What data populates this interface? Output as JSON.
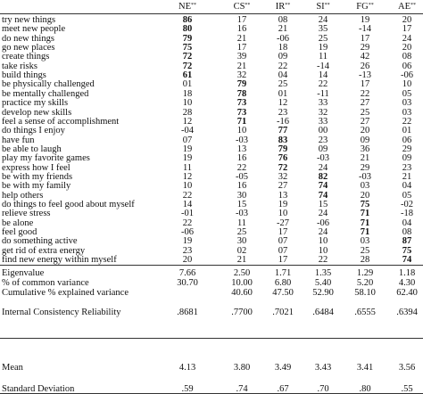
{
  "table": {
    "columns": [
      {
        "name": "NE",
        "mark": "**"
      },
      {
        "name": "CS",
        "mark": "**"
      },
      {
        "name": "IR",
        "mark": "**"
      },
      {
        "name": "SI",
        "mark": "**"
      },
      {
        "name": "FG",
        "mark": "**"
      },
      {
        "name": "AE",
        "mark": "**"
      }
    ],
    "rows": [
      {
        "label": "try new things",
        "cells": [
          "86",
          "17",
          "08",
          "24",
          "19",
          "20"
        ],
        "bold": 0
      },
      {
        "label": "meet new people",
        "cells": [
          "80",
          "16",
          "21",
          "35",
          "-14",
          "17"
        ],
        "bold": 0
      },
      {
        "label": "do new things",
        "cells": [
          "79",
          "21",
          "-06",
          "25",
          "17",
          "24"
        ],
        "bold": 0
      },
      {
        "label": "go new places",
        "cells": [
          "75",
          "17",
          "18",
          "19",
          "29",
          "20"
        ],
        "bold": 0
      },
      {
        "label": "create things",
        "cells": [
          "72",
          "39",
          "09",
          "11",
          "42",
          "08"
        ],
        "bold": 0
      },
      {
        "label": "take risks",
        "cells": [
          "72",
          "21",
          "22",
          "-14",
          "26",
          "06"
        ],
        "bold": 0
      },
      {
        "label": "build things",
        "cells": [
          "61",
          "32",
          "04",
          "14",
          "-13",
          "-06"
        ],
        "bold": 0
      },
      {
        "label": "be physically challenged",
        "cells": [
          "01",
          "79",
          "25",
          "22",
          "17",
          "10"
        ],
        "bold": 1
      },
      {
        "label": "be mentally challenged",
        "cells": [
          "18",
          "78",
          "01",
          "-11",
          "22",
          "05"
        ],
        "bold": 1
      },
      {
        "label": "practice my skills",
        "cells": [
          "10",
          "73",
          "12",
          "33",
          "27",
          "03"
        ],
        "bold": 1
      },
      {
        "label": "develop new skills",
        "cells": [
          "28",
          "73",
          "23",
          "32",
          "25",
          "03"
        ],
        "bold": 1
      },
      {
        "label": "feel a sense of accomplishment",
        "cells": [
          "12",
          "71",
          "-16",
          "33",
          "27",
          "22"
        ],
        "bold": 1
      },
      {
        "label": "do things I enjoy",
        "cells": [
          "-04",
          "10",
          "77",
          "00",
          "20",
          "01"
        ],
        "bold": 2
      },
      {
        "label": "have fun",
        "cells": [
          "07",
          "-03",
          "83",
          "23",
          "09",
          "06"
        ],
        "bold": 2
      },
      {
        "label": "be able to laugh",
        "cells": [
          "19",
          "13",
          "79",
          "09",
          "36",
          "29"
        ],
        "bold": 2
      },
      {
        "label": "play my favorite games",
        "cells": [
          "19",
          "16",
          "76",
          "-03",
          "21",
          "09"
        ],
        "bold": 2
      },
      {
        "label": "express how I feel",
        "cells": [
          "11",
          "22",
          "72",
          "24",
          "29",
          "23"
        ],
        "bold": 2
      },
      {
        "label": "be with my friends",
        "cells": [
          "12",
          "-05",
          "32",
          "82",
          "-03",
          "21"
        ],
        "bold": 3
      },
      {
        "label": "be with my family",
        "cells": [
          "10",
          "16",
          "27",
          "74",
          "03",
          "04"
        ],
        "bold": 3
      },
      {
        "label": "help others",
        "cells": [
          "22",
          "30",
          "13",
          "74",
          "20",
          "05"
        ],
        "bold": 3
      },
      {
        "label": "do things to feel good about myself",
        "cells": [
          "14",
          "15",
          "19",
          "15",
          "75",
          "-02"
        ],
        "bold": 4
      },
      {
        "label": "relieve stress",
        "cells": [
          "-01",
          "-03",
          "10",
          "24",
          "71",
          "-18"
        ],
        "bold": 4
      },
      {
        "label": "be alone",
        "cells": [
          "22",
          "11",
          "-27",
          "-06",
          "71",
          "04"
        ],
        "bold": 4
      },
      {
        "label": "feel good",
        "cells": [
          "-06",
          "25",
          "17",
          "24",
          "71",
          "08"
        ],
        "bold": 4
      },
      {
        "label": "do something active",
        "cells": [
          "19",
          "30",
          "07",
          "10",
          "03",
          "87"
        ],
        "bold": 5
      },
      {
        "label": "get rid of extra energy",
        "cells": [
          "23",
          "02",
          "07",
          "10",
          "25",
          "75"
        ],
        "bold": 5
      },
      {
        "label": "find new energy within myself",
        "cells": [
          "20",
          "21",
          "17",
          "22",
          "28",
          "74"
        ],
        "bold": 5
      }
    ],
    "stats": [
      {
        "label": "Eigenvalue",
        "cells": [
          "7.66",
          "2.50",
          "1.71",
          "1.35",
          "1.29",
          "1.18"
        ]
      },
      {
        "label": "% of common variance",
        "cells": [
          "30.70",
          "10.00",
          "6.80",
          "5.40",
          "5.20",
          "4.30"
        ]
      },
      {
        "label": "Cumulative % explained variance",
        "cells": [
          null,
          "40.60",
          "47.50",
          "52.90",
          "58.10",
          "62.40"
        ]
      },
      {
        "label": "Internal Consistency Reliability",
        "cells": [
          ".8681",
          ".7700",
          ".7021",
          ".6484",
          ".6555",
          ".6394"
        ]
      }
    ],
    "summary": [
      {
        "label": "Mean",
        "cells": [
          "4.13",
          "3.80",
          "3.49",
          "3.43",
          "3.41",
          "3.56"
        ]
      },
      {
        "label": "Standard Deviation",
        "cells": [
          ".59",
          ".74",
          ".67",
          ".70",
          ".80",
          ".55"
        ]
      }
    ]
  }
}
